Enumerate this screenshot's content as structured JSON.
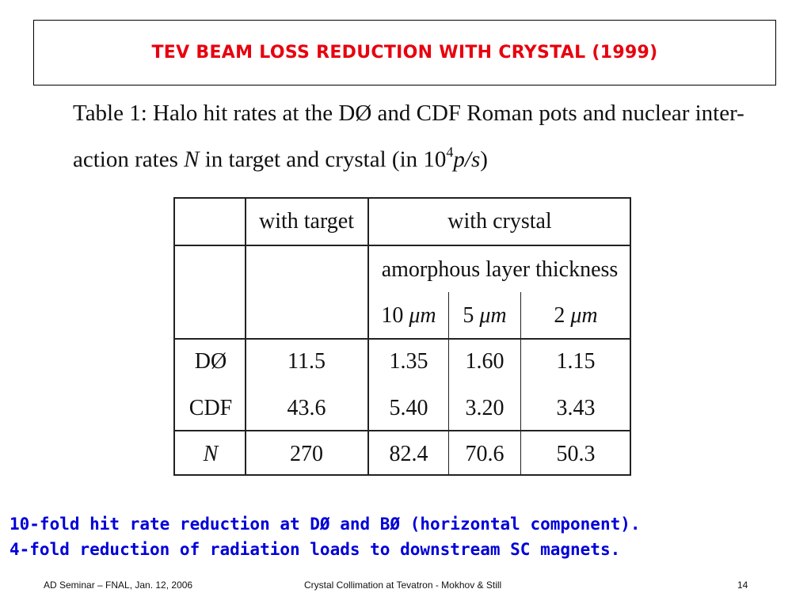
{
  "slide": {
    "title": "TEV BEAM LOSS REDUCTION WITH CRYSTAL (1999)"
  },
  "caption": {
    "line1": "Table 1: Halo hit rates at the DØ  and CDF Roman pots and nuclear inter-",
    "line2_prefix": "action rates ",
    "line2_var": "N",
    "line2_mid": " in target and crystal (in 10",
    "line2_sup": "4",
    "line2_unit": "p/s",
    "line2_suffix": ")"
  },
  "table": {
    "header_target": "with target",
    "header_crystal": "with crystal",
    "subheader": "amorphous layer thickness",
    "thickness": [
      {
        "num": "10 ",
        "unit": "μm"
      },
      {
        "num": "5 ",
        "unit": "μm"
      },
      {
        "num": "2 ",
        "unit": "μm"
      }
    ],
    "rows": [
      {
        "label": "DØ",
        "italic": false,
        "target": "11.5",
        "c10": "1.35",
        "c5": "1.60",
        "c2": "1.15"
      },
      {
        "label": "CDF",
        "italic": false,
        "target": "43.6",
        "c10": "5.40",
        "c5": "3.20",
        "c2": "3.43"
      },
      {
        "label": "N",
        "italic": true,
        "target": "270",
        "c10": "82.4",
        "c5": "70.6",
        "c2": "50.3"
      }
    ]
  },
  "findings": [
    "10-fold hit rate reduction at DØ and BØ (horizontal component).",
    "4-fold reduction of radiation loads to downstream SC magnets."
  ],
  "footer": {
    "left": "AD Seminar – FNAL, Jan. 12, 2006",
    "center": "Crystal Collimation at Tevatron -  Mokhov & Still",
    "page": "14"
  }
}
